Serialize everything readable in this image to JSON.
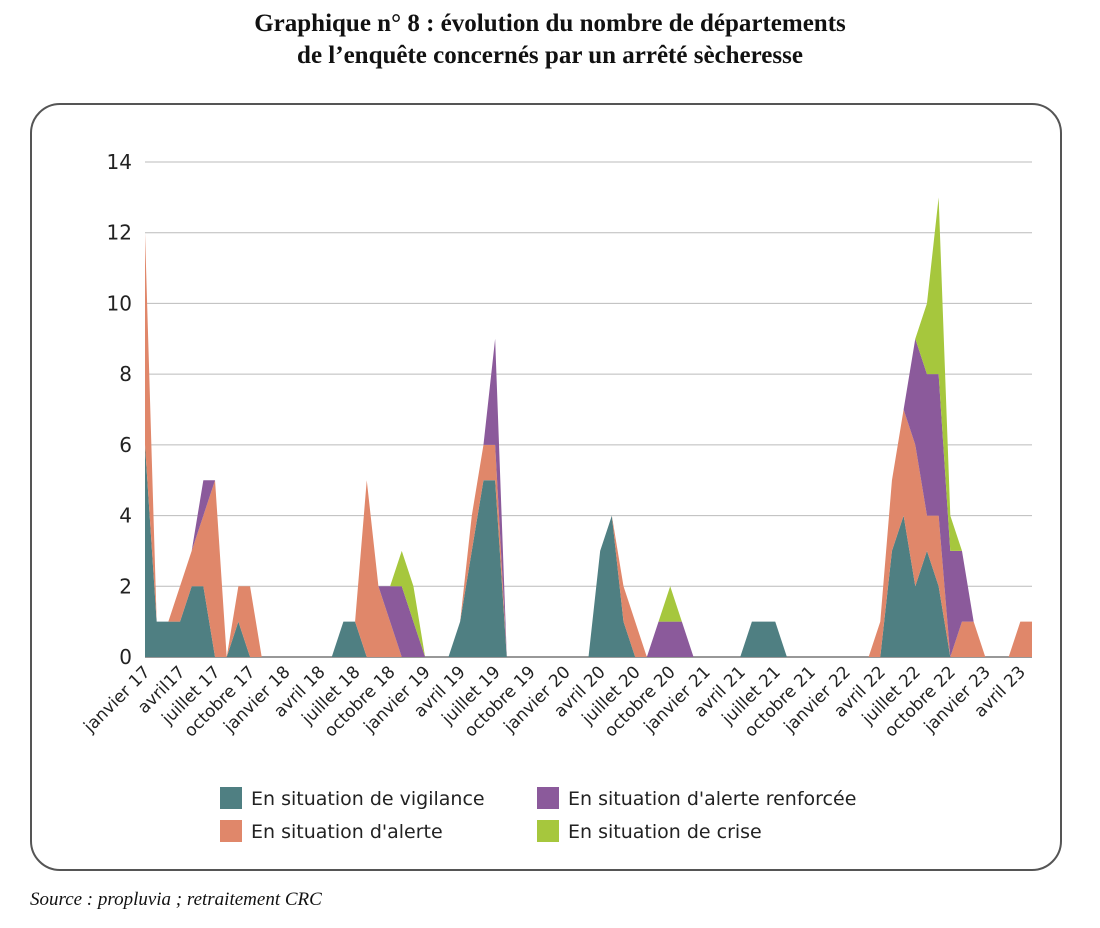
{
  "title_line1": "Graphique n° 8 : évolution du nombre de départements",
  "title_line2": "de l’enquête concernés par un arrêté sècheresse",
  "source": "Source : propluvia ; retraitement CRC",
  "chart_data": {
    "type": "area",
    "stacked": true,
    "title": "Graphique n° 8 : évolution du nombre de départements de l’enquête concernés par un arrêté sècheresse",
    "xlabel": "",
    "ylabel": "",
    "ylim": [
      0,
      14
    ],
    "yticks": [
      0,
      2,
      4,
      6,
      8,
      10,
      12,
      14
    ],
    "grid": true,
    "legend_position": "bottom",
    "x_tick_labels": [
      "janvier 17",
      "avril17",
      "juillet 17",
      "octobre 17",
      "janvier 18",
      "avril 18",
      "juillet 18",
      "octobre 18",
      "janvier 19",
      "avril 19",
      "juillet 19",
      "octobre 19",
      "janvier 20",
      "avril 20",
      "juillet 20",
      "octobre 20",
      "janvier 21",
      "avril 21",
      "juillet 21",
      "octobre 21",
      "janvier 22",
      "avril 22",
      "juillet 22",
      "octobre 22",
      "janvier 23",
      "avril 23"
    ],
    "x": [
      "janv. 17",
      "févr. 17",
      "mars 17",
      "avr. 17",
      "mai 17",
      "juin 17",
      "juil. 17",
      "août 17",
      "sept. 17",
      "oct. 17",
      "nov. 17",
      "déc. 17",
      "janv. 18",
      "févr. 18",
      "mars 18",
      "avr. 18",
      "mai 18",
      "juin 18",
      "juil. 18",
      "août 18",
      "sept. 18",
      "oct. 18",
      "nov. 18",
      "déc. 18",
      "janv. 19",
      "févr. 19",
      "mars 19",
      "avr. 19",
      "mai 19",
      "juin 19",
      "juil. 19",
      "août 19",
      "sept. 19",
      "oct. 19",
      "nov. 19",
      "déc. 19",
      "janv. 20",
      "févr. 20",
      "mars 20",
      "avr. 20",
      "mai 20",
      "juin 20",
      "juil. 20",
      "août 20",
      "sept. 20",
      "oct. 20",
      "nov. 20",
      "déc. 20",
      "janv. 21",
      "févr. 21",
      "mars 21",
      "avr. 21",
      "mai 21",
      "juin 21",
      "juil. 21",
      "août 21",
      "sept. 21",
      "oct. 21",
      "nov. 21",
      "déc. 21",
      "janv. 22",
      "févr. 22",
      "mars 22",
      "avr. 22",
      "mai 22",
      "juin 22",
      "juil. 22",
      "août 22",
      "sept. 22",
      "oct. 22",
      "nov. 22",
      "déc. 22",
      "janv. 23",
      "févr. 23",
      "mars 23",
      "avr. 23",
      "mai 23"
    ],
    "series": [
      {
        "name": "En situation de vigilance",
        "color": "#4f7f82",
        "values": [
          6,
          1,
          1,
          1,
          2,
          2,
          0,
          0,
          1,
          0,
          0,
          0,
          0,
          0,
          0,
          0,
          0,
          1,
          1,
          0,
          0,
          0,
          0,
          0,
          0,
          0,
          0,
          1,
          3,
          5,
          5,
          0,
          0,
          0,
          0,
          0,
          0,
          0,
          0,
          3,
          4,
          1,
          0,
          0,
          0,
          0,
          0,
          0,
          0,
          0,
          0,
          0,
          1,
          1,
          1,
          0,
          0,
          0,
          0,
          0,
          0,
          0,
          0,
          0,
          3,
          4,
          2,
          3,
          2,
          0,
          0,
          0,
          0,
          0,
          0,
          0,
          0
        ]
      },
      {
        "name": "En situation d'alerte",
        "color": "#e0876a",
        "values": [
          6,
          0,
          0,
          1,
          1,
          2,
          5,
          0,
          1,
          2,
          0,
          0,
          0,
          0,
          0,
          0,
          0,
          0,
          0,
          5,
          2,
          1,
          0,
          0,
          0,
          0,
          0,
          0,
          1,
          1,
          1,
          0,
          0,
          0,
          0,
          0,
          0,
          0,
          0,
          0,
          0,
          1,
          1,
          0,
          0,
          0,
          0,
          0,
          0,
          0,
          0,
          0,
          0,
          0,
          0,
          0,
          0,
          0,
          0,
          0,
          0,
          0,
          0,
          1,
          2,
          3,
          4,
          1,
          2,
          0,
          1,
          1,
          0,
          0,
          0,
          1,
          1
        ]
      },
      {
        "name": "En situation d'alerte renforcée",
        "color": "#8b5a9b",
        "values": [
          0,
          0,
          0,
          0,
          0,
          1,
          0,
          0,
          0,
          0,
          0,
          0,
          0,
          0,
          0,
          0,
          0,
          0,
          0,
          0,
          0,
          1,
          2,
          1,
          0,
          0,
          0,
          0,
          0,
          0,
          3,
          0,
          0,
          0,
          0,
          0,
          0,
          0,
          0,
          0,
          0,
          0,
          0,
          0,
          1,
          1,
          1,
          0,
          0,
          0,
          0,
          0,
          0,
          0,
          0,
          0,
          0,
          0,
          0,
          0,
          0,
          0,
          0,
          0,
          0,
          0,
          3,
          4,
          4,
          3,
          2,
          0,
          0,
          0,
          0,
          0,
          0
        ]
      },
      {
        "name": "En situation de crise",
        "color": "#a6c73d",
        "values": [
          0,
          0,
          0,
          0,
          0,
          0,
          0,
          0,
          0,
          0,
          0,
          0,
          0,
          0,
          0,
          0,
          0,
          0,
          0,
          0,
          0,
          0,
          1,
          1,
          0,
          0,
          0,
          0,
          0,
          0,
          0,
          0,
          0,
          0,
          0,
          0,
          0,
          0,
          0,
          0,
          0,
          0,
          0,
          0,
          0,
          1,
          0,
          0,
          0,
          0,
          0,
          0,
          0,
          0,
          0,
          0,
          0,
          0,
          0,
          0,
          0,
          0,
          0,
          0,
          0,
          0,
          0,
          2,
          5,
          1,
          0,
          0,
          0,
          0,
          0,
          0,
          0
        ]
      }
    ]
  }
}
